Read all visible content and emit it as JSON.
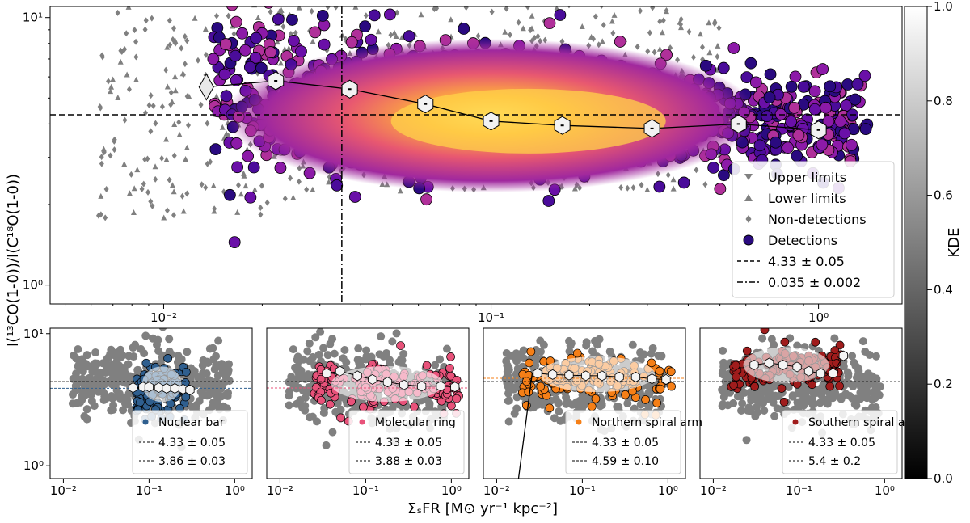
{
  "main": {
    "ylabel": "I(¹³CO(1-0))/I(C¹⁸O(1-0))",
    "xticks": [
      {
        "v": 0.01,
        "label": "10⁻²"
      },
      {
        "v": 0.1,
        "label": "10⁻¹"
      },
      {
        "v": 1,
        "label": "10⁰"
      }
    ],
    "yticks": [
      {
        "v": 1,
        "label": "10⁰"
      },
      {
        "v": 10,
        "label": "10¹"
      }
    ],
    "legend": [
      {
        "marker": "tri-down",
        "label": "Upper limits"
      },
      {
        "marker": "tri-up",
        "label": "Lower limits"
      },
      {
        "marker": "diamond",
        "label": "Non-detections"
      },
      {
        "marker": "circle",
        "label": "Detections"
      },
      {
        "marker": "dashed",
        "label": "4.33 ± 0.05"
      },
      {
        "marker": "dashdot",
        "label": "0.035 ± 0.002"
      }
    ]
  },
  "colorbar": {
    "label": "KDE",
    "ticks": [
      "0.0",
      "0.2",
      "0.4",
      "0.6",
      "0.8",
      "1.0"
    ]
  },
  "xlabel": "ΣₛFR [M⊙ yr⁻¹ kpc⁻²]",
  "panels": [
    {
      "name": "Nuclear bar",
      "color": "#2f5f8f",
      "l1": "4.33 ± 0.05",
      "l2": "3.86 ± 0.03"
    },
    {
      "name": "Molecular ring",
      "color": "#e8527a",
      "l1": "4.33 ± 0.05",
      "l2": "3.88 ± 0.03"
    },
    {
      "name": "Northern spiral arm",
      "color": "#f57f17",
      "l1": "4.33 ± 0.05",
      "l2": "4.59 ± 0.10"
    },
    {
      "name": "Southern spiral arm",
      "color": "#a01c1c",
      "l1": "4.33 ± 0.05",
      "l2": "5.4 ± 0.2"
    }
  ],
  "chart_data": {
    "type": "scatter",
    "xscale": "log",
    "yscale": "log",
    "xlim": [
      0.0045,
      1.8
    ],
    "ylim": [
      0.85,
      11
    ],
    "grid": false,
    "legend_position": "lower-right",
    "hline": 4.33,
    "vline": 0.035,
    "binned": [
      {
        "x": 0.0135,
        "y": 5.5
      },
      {
        "x": 0.022,
        "y": 5.8
      },
      {
        "x": 0.037,
        "y": 5.4
      },
      {
        "x": 0.063,
        "y": 4.75
      },
      {
        "x": 0.1,
        "y": 4.1
      },
      {
        "x": 0.165,
        "y": 3.95
      },
      {
        "x": 0.31,
        "y": 3.85
      },
      {
        "x": 0.57,
        "y": 4.0
      },
      {
        "x": 1.0,
        "y": 3.8
      }
    ],
    "subpanels": {
      "xlim": [
        0.007,
        1.6
      ],
      "ylim": [
        0.8,
        11
      ],
      "xticks": [
        {
          "v": 0.01,
          "label": "10⁻²"
        },
        {
          "v": 0.1,
          "label": "10⁻¹"
        },
        {
          "v": 1,
          "label": "10⁰"
        }
      ],
      "yticks": [
        {
          "v": 1,
          "label": "10⁰"
        },
        {
          "v": 10,
          "label": "10¹"
        }
      ],
      "region_lines": [
        3.86,
        3.88,
        4.59,
        5.4
      ],
      "binned": [
        [
          {
            "x": 0.065,
            "y": 3.9
          },
          {
            "x": 0.085,
            "y": 3.95
          },
          {
            "x": 0.1,
            "y": 3.95
          },
          {
            "x": 0.13,
            "y": 3.9
          },
          {
            "x": 0.16,
            "y": 3.85
          },
          {
            "x": 0.2,
            "y": 3.85
          },
          {
            "x": 0.25,
            "y": 3.8
          },
          {
            "x": 0.3,
            "y": 3.75
          }
        ],
        [
          {
            "x": 0.035,
            "y": 5.0
          },
          {
            "x": 0.05,
            "y": 5.2
          },
          {
            "x": 0.08,
            "y": 4.8
          },
          {
            "x": 0.12,
            "y": 4.5
          },
          {
            "x": 0.18,
            "y": 4.3
          },
          {
            "x": 0.28,
            "y": 4.1
          },
          {
            "x": 0.45,
            "y": 4.0
          },
          {
            "x": 0.75,
            "y": 4.0
          },
          {
            "x": 1.1,
            "y": 3.95
          }
        ],
        [
          {
            "x": 0.03,
            "y": 5.0
          },
          {
            "x": 0.045,
            "y": 4.9
          },
          {
            "x": 0.07,
            "y": 4.85
          },
          {
            "x": 0.11,
            "y": 4.8
          },
          {
            "x": 0.17,
            "y": 4.8
          },
          {
            "x": 0.27,
            "y": 4.7
          },
          {
            "x": 0.42,
            "y": 4.7
          },
          {
            "x": 0.65,
            "y": 4.55
          },
          {
            "x": 0.95,
            "y": 4.5
          }
        ],
        [
          {
            "x": 0.03,
            "y": 5.8
          },
          {
            "x": 0.045,
            "y": 6.0
          },
          {
            "x": 0.065,
            "y": 5.8
          },
          {
            "x": 0.095,
            "y": 5.6
          },
          {
            "x": 0.13,
            "y": 5.2
          },
          {
            "x": 0.18,
            "y": 5.0
          },
          {
            "x": 0.25,
            "y": 5.0
          },
          {
            "x": 0.33,
            "y": 6.8
          }
        ]
      ]
    }
  }
}
